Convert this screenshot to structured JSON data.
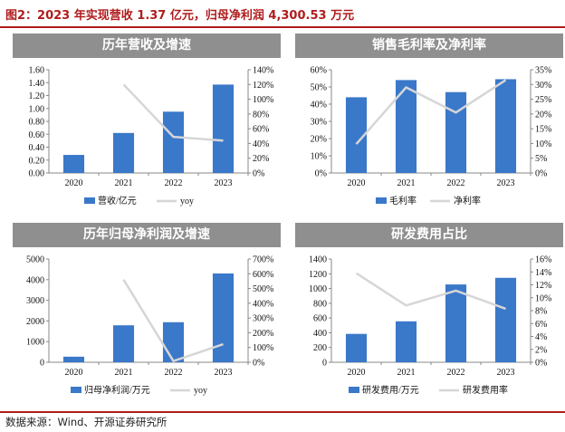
{
  "figure_title": "图2：2023 年实现营收 1.37 亿元，归母净利润 4,300.53 万元",
  "source": "数据来源：Wind、开源证券研究所",
  "colors": {
    "bar": "#3a78c9",
    "line": "#d6d6d6",
    "header": "#8f8f8f",
    "accent": "#b01c1c"
  },
  "chart_data": [
    {
      "type": "bar+line",
      "title": "历年营收及增速",
      "categories": [
        "2020",
        "2021",
        "2022",
        "2023"
      ],
      "series": [
        {
          "name": "营收/亿元",
          "kind": "bar",
          "axis": "left",
          "values": [
            0.28,
            0.62,
            0.95,
            1.37
          ]
        },
        {
          "name": "yoy",
          "kind": "line",
          "axis": "right",
          "values": [
            null,
            120,
            49,
            44
          ]
        }
      ],
      "ylim_left": [
        0,
        1.6
      ],
      "yticks_left": [
        "0.00",
        "0.20",
        "0.40",
        "0.60",
        "0.80",
        "1.00",
        "1.20",
        "1.40",
        "1.60"
      ],
      "ylim_right": [
        0,
        140
      ],
      "yticks_right": [
        "0%",
        "20%",
        "40%",
        "60%",
        "80%",
        "100%",
        "120%",
        "140%"
      ],
      "legend_position": "bottom"
    },
    {
      "type": "bar+line",
      "title": "销售毛利率及净利率",
      "categories": [
        "2020",
        "2021",
        "2022",
        "2023"
      ],
      "series": [
        {
          "name": "毛利率",
          "kind": "bar",
          "axis": "left",
          "values": [
            44,
            54,
            47,
            54.5
          ]
        },
        {
          "name": "净利率",
          "kind": "line",
          "axis": "right",
          "values": [
            9.8,
            29,
            20.5,
            31.5
          ]
        }
      ],
      "ylim_left": [
        0,
        60
      ],
      "yticks_left": [
        "0%",
        "10%",
        "20%",
        "30%",
        "40%",
        "50%",
        "60%"
      ],
      "ylim_right": [
        0,
        35
      ],
      "yticks_right": [
        "0%",
        "5%",
        "10%",
        "15%",
        "20%",
        "25%",
        "30%",
        "35%"
      ],
      "legend_position": "bottom"
    },
    {
      "type": "bar+line",
      "title": "历年归母净利润及增速",
      "categories": [
        "2020",
        "2021",
        "2022",
        "2023"
      ],
      "series": [
        {
          "name": "归母净利润/万元",
          "kind": "bar",
          "axis": "left",
          "values": [
            270,
            1790,
            1940,
            4300.53
          ]
        },
        {
          "name": "yoy",
          "kind": "line",
          "axis": "right",
          "values": [
            null,
            560,
            8,
            122
          ]
        }
      ],
      "ylim_left": [
        0,
        5000
      ],
      "yticks_left": [
        "0",
        "1000",
        "2000",
        "3000",
        "4000",
        "5000"
      ],
      "ylim_right": [
        0,
        700
      ],
      "yticks_right": [
        "0%",
        "100%",
        "200%",
        "300%",
        "400%",
        "500%",
        "600%",
        "700%"
      ],
      "legend_position": "bottom"
    },
    {
      "type": "bar+line",
      "title": "研发费用占比",
      "categories": [
        "2020",
        "2021",
        "2022",
        "2023"
      ],
      "series": [
        {
          "name": "研发费用/万元",
          "kind": "bar",
          "axis": "left",
          "values": [
            385,
            555,
            1055,
            1145
          ]
        },
        {
          "name": "研发费用率",
          "kind": "line",
          "axis": "right",
          "values": [
            13.8,
            8.8,
            11.1,
            8.3
          ]
        }
      ],
      "ylim_left": [
        0,
        1400
      ],
      "yticks_left": [
        "0",
        "200",
        "400",
        "600",
        "800",
        "1000",
        "1200",
        "1400"
      ],
      "ylim_right": [
        0,
        16
      ],
      "yticks_right": [
        "0%",
        "2%",
        "4%",
        "6%",
        "8%",
        "10%",
        "12%",
        "14%",
        "16%"
      ],
      "legend_position": "bottom"
    }
  ]
}
